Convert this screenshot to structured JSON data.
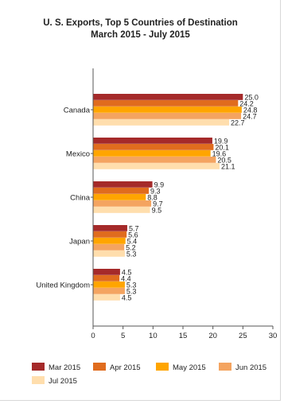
{
  "chart_data": {
    "type": "bar",
    "orientation": "horizontal",
    "title": "U. S. Exports, Top 5 Countries of Destination",
    "subtitle": "March 2015 - July 2015",
    "xlabel": "",
    "ylabel": "",
    "xlim": [
      0,
      30
    ],
    "xticks": [
      0,
      5,
      10,
      15,
      20,
      25,
      30
    ],
    "grid": false,
    "legend_position": "bottom",
    "categories": [
      "Canada",
      "Mexico",
      "China",
      "Japan",
      "United Kingdom"
    ],
    "series": [
      {
        "name": "Mar 2015",
        "color": "#a52a2a",
        "values": [
          25.0,
          19.9,
          9.9,
          5.7,
          4.5
        ]
      },
      {
        "name": "Apr 2015",
        "color": "#e06c1e",
        "values": [
          24.2,
          20.1,
          9.3,
          5.6,
          4.4
        ]
      },
      {
        "name": "May 2015",
        "color": "#ffa500",
        "values": [
          24.8,
          19.6,
          8.8,
          5.4,
          5.3
        ]
      },
      {
        "name": "Jun 2015",
        "color": "#f4a460",
        "values": [
          24.7,
          20.5,
          9.7,
          5.2,
          5.3
        ]
      },
      {
        "name": "Jul 2015",
        "color": "#ffdead",
        "values": [
          22.7,
          21.1,
          9.5,
          5.3,
          4.5
        ]
      }
    ],
    "value_labels": [
      [
        "25.0",
        "19.9",
        "9.9",
        "5.7",
        "4.5"
      ],
      [
        "24.2",
        "20.1",
        "9.3",
        "5.6",
        "4.4"
      ],
      [
        "24.8",
        "19.6",
        "8.8",
        "5.4",
        "5.3"
      ],
      [
        "24.7",
        "20.5",
        "9.7",
        "5.2",
        "5.3"
      ],
      [
        "22.7",
        "21.1",
        "9.5",
        "5.3",
        "4.5"
      ]
    ]
  }
}
